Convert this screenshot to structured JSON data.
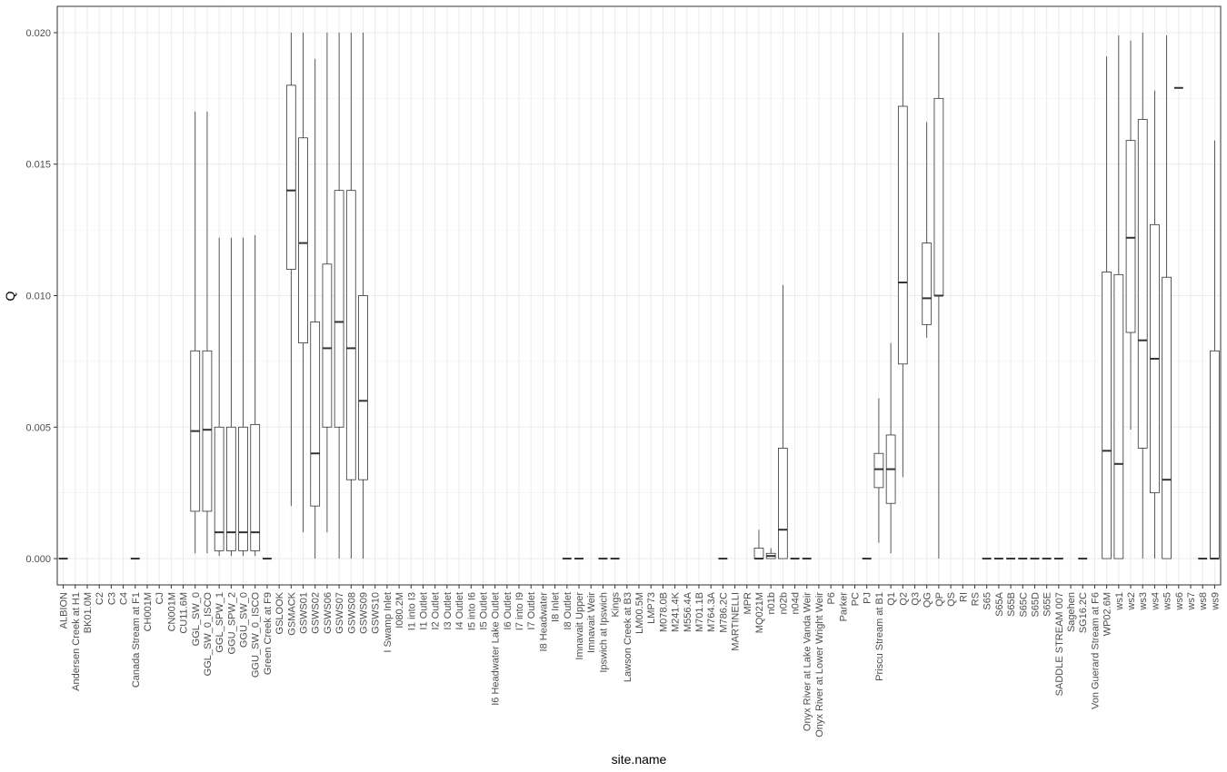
{
  "chart_data": {
    "type": "boxplot",
    "xlabel": "site.name",
    "ylabel": "Q",
    "ylim": [
      -0.001,
      0.021
    ],
    "yticks": [
      0.0,
      0.005,
      0.01,
      0.015,
      0.02
    ],
    "ytick_labels": [
      "0.000",
      "0.005",
      "0.010",
      "0.015",
      "0.020"
    ],
    "grid": true,
    "categories": [
      "ALBION",
      "Andersen Creek at H1",
      "BK01.0M",
      "C2",
      "C3",
      "C4",
      "Canada Stream at F1",
      "CH001M",
      "CJ",
      "CN001M",
      "CU11.6M",
      "GGL_SW_0",
      "GGL_SW_0_ISCO",
      "GGL_SPW_1",
      "GGU_SPW_2",
      "GGU_SW_0",
      "GGU_SW_0_ISCO",
      "Green Creek at F9",
      "GSLOOK",
      "GSMACK",
      "GSWS01",
      "GSWS02",
      "GSWS06",
      "GSWS07",
      "GSWS08",
      "GSWS09",
      "GSWS10",
      "I Swamp Inlet",
      "I080.2M",
      "I1 into I3",
      "I1 Outlet",
      "I2 Outlet",
      "I3 Outlet",
      "I4 Outlet",
      "I5 into I6",
      "I5 Outlet",
      "I6 Headwater Lake Outlet",
      "I6 Outlet",
      "I7 into I9",
      "I7 Outlet",
      "I8 Headwater",
      "I8 Inlet",
      "I8 Outlet",
      "Imnavait Upper",
      "Imnavait Weir",
      "Ipswich at Ipswich",
      "Kings",
      "Lawson Creek at B3",
      "LM00.5M",
      "LMP73",
      "M078.0B",
      "M241.4K",
      "M556.4A",
      "M701.1B",
      "M764.3A",
      "M786.2C",
      "MARTINELLI",
      "MPR",
      "MQ021M",
      "n01b",
      "n02b",
      "n04d",
      "Onyx River at Lake Vanda Weir",
      "Onyx River at Lower Wright Weir",
      "P6",
      "Parker",
      "PC",
      "PJ",
      "Priscu Stream at B1",
      "Q1",
      "Q2",
      "Q3",
      "QG",
      "QP",
      "QS",
      "RI",
      "RS",
      "S65",
      "S65A",
      "S65B",
      "S65C",
      "S65D",
      "S65E",
      "SADDLE STREAM 007",
      "Sagehen",
      "SG16.2C",
      "Von Guerard Stream at F6",
      "WP02.6M",
      "ws1",
      "ws2",
      "ws3",
      "ws4",
      "ws5",
      "ws6",
      "ws7",
      "ws8",
      "ws9"
    ],
    "boxes": [
      {
        "site": "ALBION",
        "min": 0,
        "q1": 0,
        "median": 0,
        "q3": 0,
        "max": 0
      },
      {
        "site": "Canada Stream at F1",
        "min": 0,
        "q1": 0,
        "median": 0,
        "q3": 0,
        "max": 0
      },
      {
        "site": "GGL_SW_0",
        "min": 0.0002,
        "q1": 0.0018,
        "median": 0.00485,
        "q3": 0.0079,
        "max": 0.017
      },
      {
        "site": "GGL_SW_0_ISCO",
        "min": 0.0002,
        "q1": 0.0018,
        "median": 0.0049,
        "q3": 0.0079,
        "max": 0.017
      },
      {
        "site": "GGL_SPW_1",
        "min": 0.0001,
        "q1": 0.0003,
        "median": 0.001,
        "q3": 0.005,
        "max": 0.0122
      },
      {
        "site": "GGU_SPW_2",
        "min": 0.0001,
        "q1": 0.0003,
        "median": 0.001,
        "q3": 0.005,
        "max": 0.0122
      },
      {
        "site": "GGU_SW_0",
        "min": 0.0001,
        "q1": 0.0003,
        "median": 0.001,
        "q3": 0.005,
        "max": 0.0122
      },
      {
        "site": "GGU_SW_0_ISCO",
        "min": 0.0001,
        "q1": 0.0003,
        "median": 0.001,
        "q3": 0.0051,
        "max": 0.0123
      },
      {
        "site": "Green Creek at F9",
        "min": 0,
        "q1": 0,
        "median": 0,
        "q3": 0,
        "max": 0
      },
      {
        "site": "GSMACK",
        "min": 0.002,
        "q1": 0.011,
        "median": 0.014,
        "q3": 0.018,
        "max": 0.02
      },
      {
        "site": "GSWS01",
        "min": 0.001,
        "q1": 0.0082,
        "median": 0.012,
        "q3": 0.016,
        "max": 0.02
      },
      {
        "site": "GSWS02",
        "min": 0.0,
        "q1": 0.002,
        "median": 0.004,
        "q3": 0.009,
        "max": 0.019
      },
      {
        "site": "GSWS06",
        "min": 0.001,
        "q1": 0.005,
        "median": 0.008,
        "q3": 0.0112,
        "max": 0.02
      },
      {
        "site": "GSWS07",
        "min": 0.0,
        "q1": 0.005,
        "median": 0.009,
        "q3": 0.014,
        "max": 0.02
      },
      {
        "site": "GSWS08",
        "min": 0.0,
        "q1": 0.003,
        "median": 0.008,
        "q3": 0.014,
        "max": 0.02
      },
      {
        "site": "GSWS09",
        "min": 0.0,
        "q1": 0.003,
        "median": 0.006,
        "q3": 0.01,
        "max": 0.02
      },
      {
        "site": "I8 Outlet",
        "min": 0,
        "q1": 0,
        "median": 0,
        "q3": 0,
        "max": 0
      },
      {
        "site": "Imnavait Upper",
        "min": 0,
        "q1": 0,
        "median": 0,
        "q3": 0,
        "max": 0
      },
      {
        "site": "Ipswich at Ipswich",
        "min": 0,
        "q1": 0,
        "median": 0,
        "q3": 0,
        "max": 0
      },
      {
        "site": "Kings",
        "min": 0,
        "q1": 0,
        "median": 0,
        "q3": 0,
        "max": 0
      },
      {
        "site": "M786.2C",
        "min": 0,
        "q1": 0,
        "median": 0,
        "q3": 0,
        "max": 0
      },
      {
        "site": "MQ021M",
        "min": 0.0,
        "q1": 0.0,
        "median": 0.0,
        "q3": 0.0004,
        "max": 0.0011
      },
      {
        "site": "n01b",
        "min": 0.0,
        "q1": 0.0,
        "median": 0.0001,
        "q3": 0.0002,
        "max": 0.0004
      },
      {
        "site": "n02b",
        "min": 0.0,
        "q1": 0.0,
        "median": 0.0011,
        "q3": 0.0042,
        "max": 0.0104
      },
      {
        "site": "n04d",
        "min": 0,
        "q1": 0,
        "median": 0,
        "q3": 0,
        "max": 0
      },
      {
        "site": "Onyx River at Lake Vanda Weir",
        "min": 0,
        "q1": 0,
        "median": 0,
        "q3": 0,
        "max": 0
      },
      {
        "site": "PJ",
        "min": 0,
        "q1": 0,
        "median": 0,
        "q3": 0,
        "max": 0
      },
      {
        "site": "Priscu Stream at B1",
        "min": 0.0006,
        "q1": 0.0027,
        "median": 0.0034,
        "q3": 0.004,
        "max": 0.0061
      },
      {
        "site": "Q1",
        "min": 0.0002,
        "q1": 0.0021,
        "median": 0.0034,
        "q3": 0.0047,
        "max": 0.0082
      },
      {
        "site": "Q2",
        "min": 0.0031,
        "q1": 0.0074,
        "median": 0.0105,
        "q3": 0.0172,
        "max": 0.02
      },
      {
        "site": "QG",
        "min": 0.0084,
        "q1": 0.0089,
        "median": 0.0099,
        "q3": 0.012,
        "max": 0.0166
      },
      {
        "site": "QP",
        "min": 0.0,
        "q1": 0.01,
        "median": 0.01,
        "q3": 0.0175,
        "max": 0.02
      },
      {
        "site": "S65",
        "min": 0,
        "q1": 0,
        "median": 0,
        "q3": 0,
        "max": 0
      },
      {
        "site": "S65A",
        "min": 0,
        "q1": 0,
        "median": 0,
        "q3": 0,
        "max": 0
      },
      {
        "site": "S65B",
        "min": 0,
        "q1": 0,
        "median": 0,
        "q3": 0,
        "max": 0
      },
      {
        "site": "S65C",
        "min": 0,
        "q1": 0,
        "median": 0,
        "q3": 0,
        "max": 0
      },
      {
        "site": "S65D",
        "min": 0,
        "q1": 0,
        "median": 0,
        "q3": 0,
        "max": 0
      },
      {
        "site": "S65E",
        "min": 0,
        "q1": 0,
        "median": 0,
        "q3": 0,
        "max": 0
      },
      {
        "site": "SADDLE STREAM 007",
        "min": 0,
        "q1": 0,
        "median": 0,
        "q3": 0,
        "max": 0
      },
      {
        "site": "SG16.2C",
        "min": 0,
        "q1": 0,
        "median": 0,
        "q3": 0,
        "max": 0
      },
      {
        "site": "WP02.6M",
        "min": 0.0,
        "q1": 0.0,
        "median": 0.0041,
        "q3": 0.0109,
        "max": 0.0191
      },
      {
        "site": "ws1",
        "min": 0.0,
        "q1": 0.0,
        "median": 0.0036,
        "q3": 0.0108,
        "max": 0.0199
      },
      {
        "site": "ws2",
        "min": 0.0049,
        "q1": 0.0086,
        "median": 0.0122,
        "q3": 0.0159,
        "max": 0.0197
      },
      {
        "site": "ws3",
        "min": 0.0,
        "q1": 0.0042,
        "median": 0.0083,
        "q3": 0.0167,
        "max": 0.02
      },
      {
        "site": "ws4",
        "min": 0.0,
        "q1": 0.0025,
        "median": 0.0076,
        "q3": 0.0127,
        "max": 0.0178
      },
      {
        "site": "ws5",
        "min": 0.0,
        "q1": 0.0,
        "median": 0.003,
        "q3": 0.0107,
        "max": 0.0199
      },
      {
        "site": "ws6",
        "min": 0.0179,
        "q1": 0.0179,
        "median": 0.0179,
        "q3": 0.0179,
        "max": 0.0179
      },
      {
        "site": "ws8",
        "min": 0,
        "q1": 0,
        "median": 0,
        "q3": 0,
        "max": 0
      },
      {
        "site": "ws9",
        "min": 0.0,
        "q1": 0.0,
        "median": 0.0,
        "q3": 0.0079,
        "max": 0.0159
      }
    ]
  }
}
